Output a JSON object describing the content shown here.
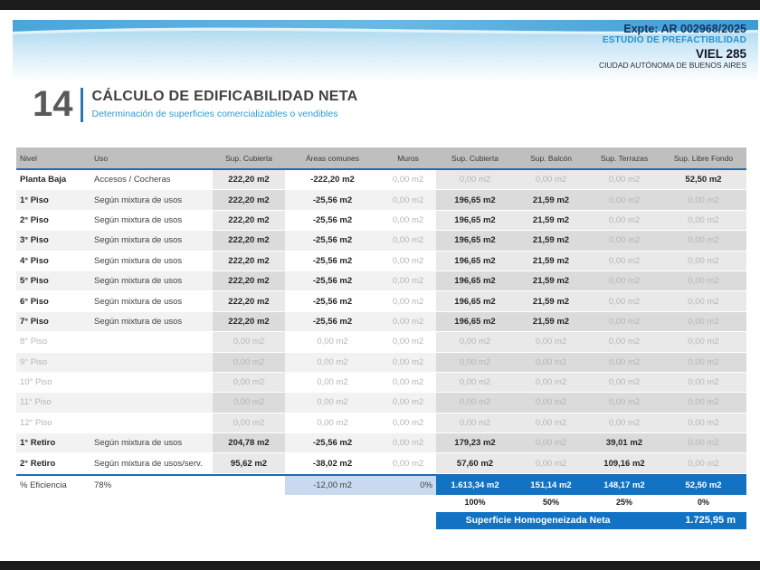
{
  "header": {
    "expte": "Expte: AR 002968/2025",
    "study": "ESTUDIO DE PREFACTIBILIDAD",
    "project": "VIEL 285",
    "city": "CIUDAD AUTÓNOMA DE BUENOS AIRES"
  },
  "title": {
    "number": "14",
    "heading": "CÁLCULO DE EDIFICABILIDAD NETA",
    "subheading": "Determinación de superficies comercializables o vendibles"
  },
  "table": {
    "columns": [
      "Nivel",
      "Uso",
      "Sup. Cubierta",
      "Áreas comunes",
      "Muros",
      "Sup. Cubierta",
      "Sup. Balcón",
      "Sup. Terrazas",
      "Sup. Libre Fondo"
    ],
    "rows": [
      {
        "nivel": "Planta Baja",
        "uso": "Accesos / Cocheras",
        "sup_cubierta": "222,20 m2",
        "areas_comunes": "-222,20 m2",
        "muros": "0,00 m2",
        "sup_cubierta2": "0,00 m2",
        "sup_balcon": "0,00 m2",
        "sup_terrazas": "0,00 m2",
        "sup_libre_fondo": "52,50 m2",
        "dim": false,
        "stripe": false
      },
      {
        "nivel": "1° Piso",
        "uso": "Según mixtura de usos",
        "sup_cubierta": "222,20 m2",
        "areas_comunes": "-25,56 m2",
        "muros": "0,00 m2",
        "sup_cubierta2": "196,65 m2",
        "sup_balcon": "21,59 m2",
        "sup_terrazas": "0,00 m2",
        "sup_libre_fondo": "0,00 m2",
        "dim": false,
        "stripe": true
      },
      {
        "nivel": "2° Piso",
        "uso": "Según mixtura de usos",
        "sup_cubierta": "222,20 m2",
        "areas_comunes": "-25,56 m2",
        "muros": "0,00 m2",
        "sup_cubierta2": "196,65 m2",
        "sup_balcon": "21,59 m2",
        "sup_terrazas": "0,00 m2",
        "sup_libre_fondo": "0,00 m2",
        "dim": false,
        "stripe": false
      },
      {
        "nivel": "3° Piso",
        "uso": "Según mixtura de usos",
        "sup_cubierta": "222,20 m2",
        "areas_comunes": "-25,56 m2",
        "muros": "0,00 m2",
        "sup_cubierta2": "196,65 m2",
        "sup_balcon": "21,59 m2",
        "sup_terrazas": "0,00 m2",
        "sup_libre_fondo": "0,00 m2",
        "dim": false,
        "stripe": true
      },
      {
        "nivel": "4° Piso",
        "uso": "Según mixtura de usos",
        "sup_cubierta": "222,20 m2",
        "areas_comunes": "-25,56 m2",
        "muros": "0,00 m2",
        "sup_cubierta2": "196,65 m2",
        "sup_balcon": "21,59 m2",
        "sup_terrazas": "0,00 m2",
        "sup_libre_fondo": "0,00 m2",
        "dim": false,
        "stripe": false
      },
      {
        "nivel": "5° Piso",
        "uso": "Según mixtura de usos",
        "sup_cubierta": "222,20 m2",
        "areas_comunes": "-25,56 m2",
        "muros": "0,00 m2",
        "sup_cubierta2": "196,65 m2",
        "sup_balcon": "21,59 m2",
        "sup_terrazas": "0,00 m2",
        "sup_libre_fondo": "0,00 m2",
        "dim": false,
        "stripe": true
      },
      {
        "nivel": "6° Piso",
        "uso": "Según mixtura de usos",
        "sup_cubierta": "222,20 m2",
        "areas_comunes": "-25,56 m2",
        "muros": "0,00 m2",
        "sup_cubierta2": "196,65 m2",
        "sup_balcon": "21,59 m2",
        "sup_terrazas": "0,00 m2",
        "sup_libre_fondo": "0,00 m2",
        "dim": false,
        "stripe": false
      },
      {
        "nivel": "7° Piso",
        "uso": "Según mixtura de usos",
        "sup_cubierta": "222,20 m2",
        "areas_comunes": "-25,56 m2",
        "muros": "0,00 m2",
        "sup_cubierta2": "196,65 m2",
        "sup_balcon": "21,59 m2",
        "sup_terrazas": "0,00 m2",
        "sup_libre_fondo": "0,00 m2",
        "dim": false,
        "stripe": true
      },
      {
        "nivel": "8° Piso",
        "uso": "",
        "sup_cubierta": "0,00 m2",
        "areas_comunes": "0,00 m2",
        "muros": "0,00 m2",
        "sup_cubierta2": "0,00 m2",
        "sup_balcon": "0,00 m2",
        "sup_terrazas": "0,00 m2",
        "sup_libre_fondo": "0,00 m2",
        "dim": true,
        "stripe": false
      },
      {
        "nivel": "9° Piso",
        "uso": "",
        "sup_cubierta": "0,00 m2",
        "areas_comunes": "0,00 m2",
        "muros": "0,00 m2",
        "sup_cubierta2": "0,00 m2",
        "sup_balcon": "0,00 m2",
        "sup_terrazas": "0,00 m2",
        "sup_libre_fondo": "0,00 m2",
        "dim": true,
        "stripe": true
      },
      {
        "nivel": "10° Piso",
        "uso": "",
        "sup_cubierta": "0,00 m2",
        "areas_comunes": "0,00 m2",
        "muros": "0,00 m2",
        "sup_cubierta2": "0,00 m2",
        "sup_balcon": "0,00 m2",
        "sup_terrazas": "0,00 m2",
        "sup_libre_fondo": "0,00 m2",
        "dim": true,
        "stripe": false
      },
      {
        "nivel": "11° Piso",
        "uso": "",
        "sup_cubierta": "0,00 m2",
        "areas_comunes": "0,00 m2",
        "muros": "0,00 m2",
        "sup_cubierta2": "0,00 m2",
        "sup_balcon": "0,00 m2",
        "sup_terrazas": "0,00 m2",
        "sup_libre_fondo": "0,00 m2",
        "dim": true,
        "stripe": true
      },
      {
        "nivel": "12° Piso",
        "uso": "",
        "sup_cubierta": "0,00 m2",
        "areas_comunes": "0,00 m2",
        "muros": "0,00 m2",
        "sup_cubierta2": "0,00 m2",
        "sup_balcon": "0,00 m2",
        "sup_terrazas": "0,00 m2",
        "sup_libre_fondo": "0,00 m2",
        "dim": true,
        "stripe": false
      },
      {
        "nivel": "1° Retiro",
        "uso": "Según mixtura de usos",
        "sup_cubierta": "204,78 m2",
        "areas_comunes": "-25,56 m2",
        "muros": "0,00 m2",
        "sup_cubierta2": "179,23 m2",
        "sup_balcon": "0,00 m2",
        "sup_terrazas": "39,01 m2",
        "sup_libre_fondo": "0,00 m2",
        "dim": false,
        "stripe": true
      },
      {
        "nivel": "2° Retiro",
        "uso": "Según mixtura de usos/serv.",
        "sup_cubierta": "95,62 m2",
        "areas_comunes": "-38,02 m2",
        "muros": "0,00 m2",
        "sup_cubierta2": "57,60 m2",
        "sup_balcon": "0,00 m2",
        "sup_terrazas": "109,16 m2",
        "sup_libre_fondo": "0,00 m2",
        "dim": false,
        "stripe": false
      }
    ],
    "eficiencia": {
      "label": "% Eficiencia",
      "value": "78%",
      "areas_comunes": "-12,00 m2",
      "muros": "0%",
      "totals": [
        "1.613,34 m2",
        "151,14 m2",
        "148,17 m2",
        "52,50 m2"
      ],
      "percents": [
        "100%",
        "50%",
        "25%",
        "0%"
      ]
    },
    "footer": {
      "label": "Superficie Homogeneizada Neta",
      "value": "1.725,95 m"
    }
  },
  "colors": {
    "accent_blue": "#1273c4",
    "rule_blue": "#2769ab",
    "light_blue_cell": "#c9daf0",
    "subtitle_blue": "#2e9bd5",
    "header_gray": "#bfbfbf"
  }
}
